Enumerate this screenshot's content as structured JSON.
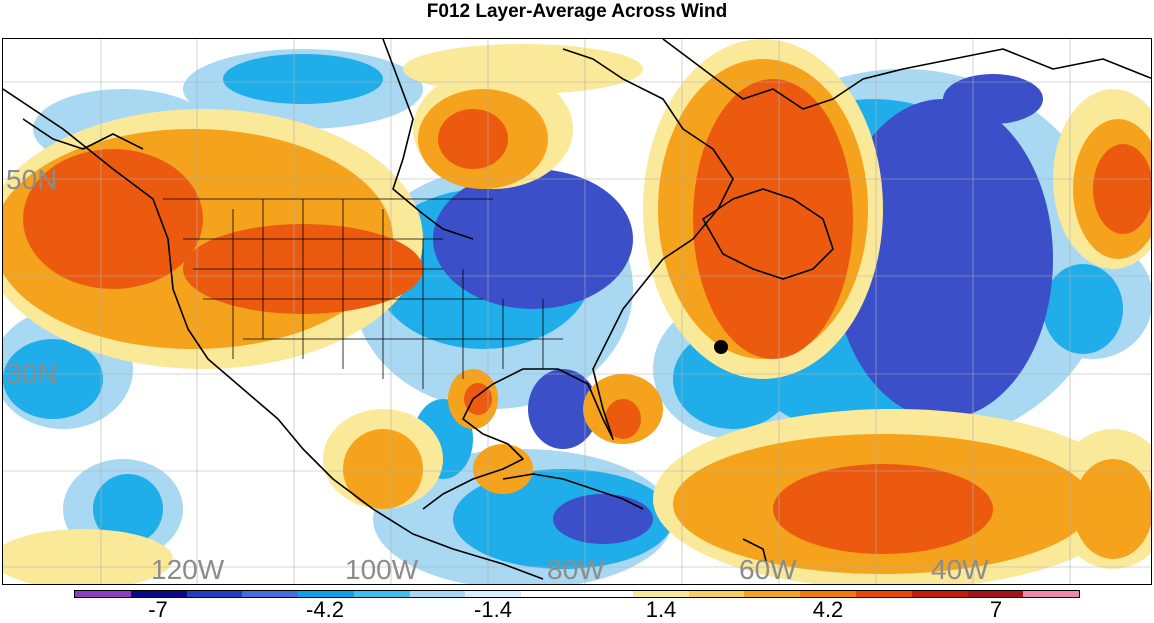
{
  "title": "F012 Layer-Average Across Wind",
  "map": {
    "lat_labels": [
      "50N",
      "30N"
    ],
    "lon_labels": [
      "120W",
      "100W",
      "80W",
      "60W",
      "40W"
    ]
  },
  "colorbar": {
    "colors": [
      "#8a3fbf",
      "#0b0b8a",
      "#1f3fbf",
      "#3f6fdf",
      "#0fa0e8",
      "#3fbfef",
      "#a6d8f2",
      "#d8eef8",
      "#ffffff",
      "#ffffff",
      "#fbe99a",
      "#f7cf63",
      "#f5a21d",
      "#f07a10",
      "#e8470c",
      "#c21a0e",
      "#a0141e",
      "#ee88aa"
    ],
    "tick_labels": [
      "-7",
      "-4.2",
      "-1.4",
      "1.4",
      "4.2",
      "7"
    ]
  }
}
